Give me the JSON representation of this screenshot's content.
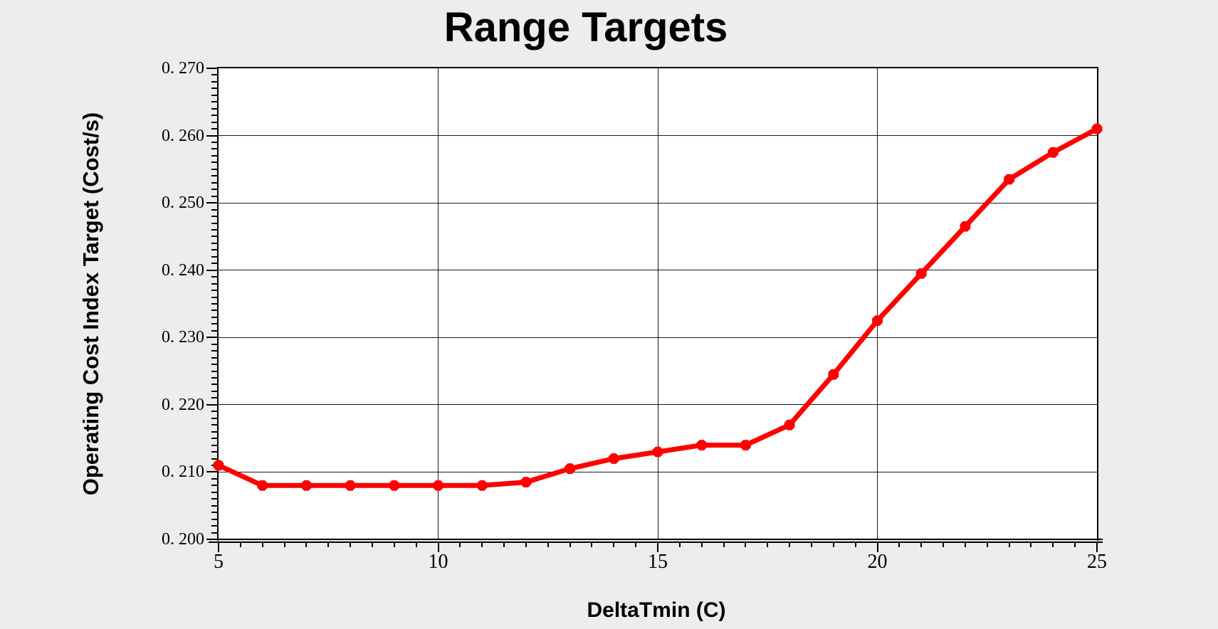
{
  "chart_data": {
    "type": "line",
    "title": "Range Targets",
    "xlabel": "DeltaTmin (C)",
    "ylabel": "Operating Cost Index Target (Cost/s)",
    "x": [
      5,
      6,
      7,
      8,
      9,
      10,
      11,
      12,
      13,
      14,
      15,
      16,
      17,
      18,
      19,
      20,
      21,
      22,
      23,
      24,
      25
    ],
    "series": [
      {
        "name": "Operating Cost Index Target",
        "values": [
          0.211,
          0.208,
          0.208,
          0.208,
          0.208,
          0.208,
          0.208,
          0.2085,
          0.2105,
          0.212,
          0.213,
          0.214,
          0.214,
          0.217,
          0.2245,
          0.2325,
          0.2395,
          0.2465,
          0.2535,
          0.2575,
          0.261
        ]
      }
    ],
    "xlim": [
      5,
      25
    ],
    "ylim": [
      0.2,
      0.27
    ],
    "x_major_ticks": [
      5,
      10,
      15,
      20,
      25
    ],
    "x_tick_labels": [
      "5",
      "10",
      "15",
      "20",
      "25"
    ],
    "x_minor_step": 0.5,
    "y_major_ticks": [
      0.2,
      0.21,
      0.22,
      0.23,
      0.24,
      0.25,
      0.26,
      0.27
    ],
    "y_tick_labels": [
      "0. 200",
      "0. 210",
      "0. 220",
      "0. 230",
      "0. 240",
      "0. 250",
      "0. 260",
      "0. 270"
    ],
    "y_minor_step": 0.001,
    "grid": {
      "vertical_at": [
        10,
        15,
        20
      ],
      "horizontal_at": [
        0.21,
        0.22,
        0.23,
        0.24,
        0.25,
        0.26
      ]
    },
    "legend": "none",
    "marker": "octagon",
    "colors": {
      "line": "#ff0000",
      "axis": "#000000",
      "grid": "#1a1a1a",
      "background": "#ededed",
      "plot_background": "#ffffff",
      "text": "#000000"
    }
  }
}
